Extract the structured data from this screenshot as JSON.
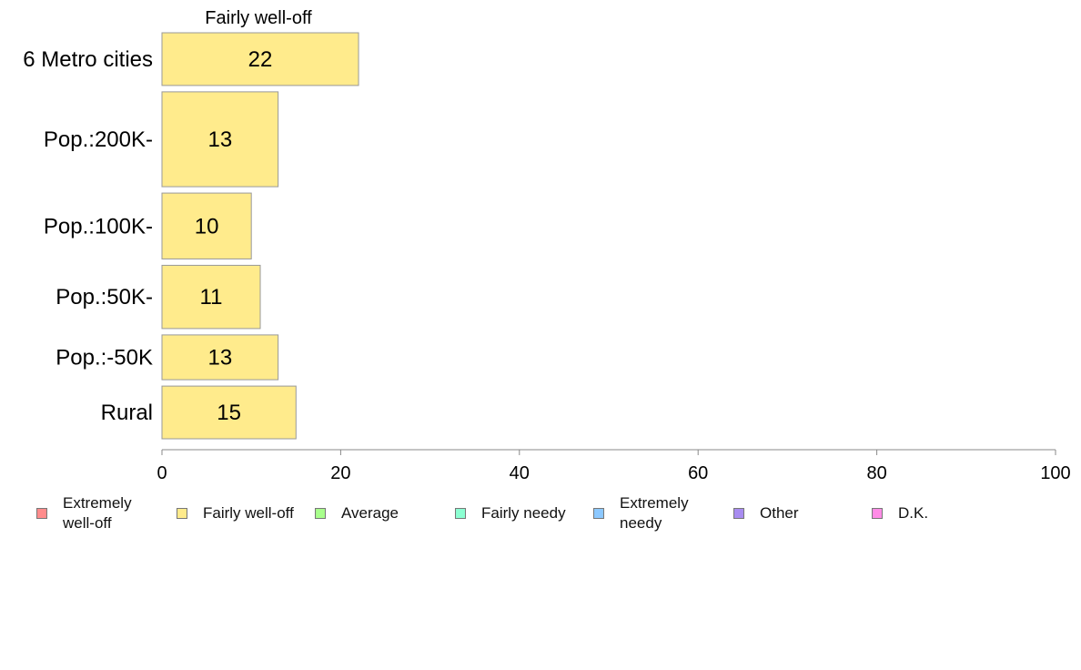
{
  "chart_data": {
    "type": "bar",
    "orientation": "horizontal",
    "title": "Fairly well-off",
    "categories": [
      "6 Metro cities",
      "Pop.:200K-",
      "Pop.:100K-",
      "Pop.:50K-",
      "Pop.:-50K",
      "Rural"
    ],
    "values": [
      22,
      13,
      10,
      11,
      13,
      15
    ],
    "category_weights": [
      1.0,
      1.8,
      1.25,
      1.2,
      0.85,
      1.0
    ],
    "bar_color": "#ffeb8c",
    "xlim": [
      0,
      100
    ],
    "xticks": [
      0,
      20,
      40,
      60,
      80,
      100
    ],
    "xlabel": "",
    "ylabel": "",
    "grid": false,
    "legend_placement": "bottom"
  },
  "legend": {
    "items": [
      {
        "label": "Extremely\nwell-off",
        "color": "#ff8c8c"
      },
      {
        "label": "Fairly well-off",
        "color": "#ffeb8c"
      },
      {
        "label": "Average",
        "color": "#a8ff8c"
      },
      {
        "label": "Fairly needy",
        "color": "#8cffd2"
      },
      {
        "label": "Extremely\nneedy",
        "color": "#8cc8ff"
      },
      {
        "label": "Other",
        "color": "#a88cf0"
      },
      {
        "label": "D.K.",
        "color": "#ff8ce6"
      }
    ]
  }
}
